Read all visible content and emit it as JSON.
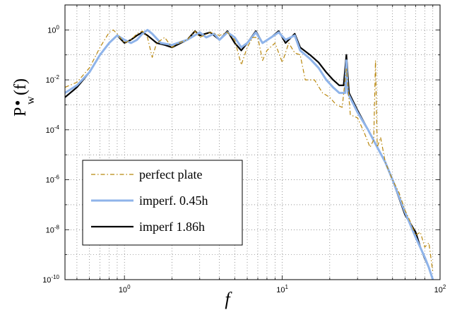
{
  "chart_data": {
    "type": "line",
    "title": "",
    "xlabel": "f",
    "ylabel": "P",
    "ylabel_sub": "w",
    "ylabel_suffix": "(f)",
    "xscale": "log",
    "yscale": "log",
    "xlim": [
      0.42,
      100
    ],
    "ylim": [
      1e-10,
      10
    ],
    "grid": true,
    "legend_position": "bottom-left",
    "x_ticks": [
      {
        "value": 1,
        "base": "10",
        "exp": "0"
      },
      {
        "value": 10,
        "base": "10",
        "exp": "1"
      },
      {
        "value": 100,
        "base": "10",
        "exp": "2"
      }
    ],
    "y_ticks": [
      {
        "value": 1e-10,
        "base": "10",
        "exp": "-10"
      },
      {
        "value": 1e-08,
        "base": "10",
        "exp": "-8"
      },
      {
        "value": 1e-06,
        "base": "10",
        "exp": "-6"
      },
      {
        "value": 0.0001,
        "base": "10",
        "exp": "-4"
      },
      {
        "value": 0.01,
        "base": "10",
        "exp": "-2"
      },
      {
        "value": 1,
        "base": "10",
        "exp": "0"
      }
    ],
    "series": [
      {
        "name": "perfect plate",
        "color": "#b8860b",
        "style": "dashdot",
        "width": 1.2,
        "points": [
          [
            0.42,
            0.005
          ],
          [
            0.5,
            0.008
          ],
          [
            0.6,
            0.03
          ],
          [
            0.7,
            0.2
          ],
          [
            0.8,
            0.8
          ],
          [
            0.85,
            1.0
          ],
          [
            0.9,
            0.7
          ],
          [
            1.0,
            0.3
          ],
          [
            1.1,
            0.4
          ],
          [
            1.2,
            0.7
          ],
          [
            1.3,
            0.9
          ],
          [
            1.4,
            0.5
          ],
          [
            1.5,
            0.08
          ],
          [
            1.6,
            0.3
          ],
          [
            1.8,
            0.5
          ],
          [
            2.0,
            0.2
          ],
          [
            2.2,
            0.3
          ],
          [
            2.5,
            0.4
          ],
          [
            2.8,
            0.9
          ],
          [
            3.0,
            0.5
          ],
          [
            3.5,
            0.8
          ],
          [
            4.0,
            0.6
          ],
          [
            4.5,
            0.8
          ],
          [
            5.0,
            0.4
          ],
          [
            5.5,
            0.04
          ],
          [
            6.0,
            0.2
          ],
          [
            6.5,
            0.5
          ],
          [
            7.0,
            0.5
          ],
          [
            7.5,
            0.06
          ],
          [
            8.0,
            0.15
          ],
          [
            9.0,
            0.3
          ],
          [
            10.0,
            0.05
          ],
          [
            11.0,
            0.3
          ],
          [
            12.0,
            0.12
          ],
          [
            13.0,
            0.1
          ],
          [
            14.0,
            0.01
          ],
          [
            16.0,
            0.01
          ],
          [
            18.0,
            0.003
          ],
          [
            20.0,
            0.002
          ],
          [
            22.0,
            0.001
          ],
          [
            24.0,
            0.0008
          ],
          [
            25.5,
            0.03
          ],
          [
            27.0,
            0.0004
          ],
          [
            30.0,
            0.0003
          ],
          [
            33.0,
            8e-05
          ],
          [
            36.0,
            2e-05
          ],
          [
            38.0,
            4e-05
          ],
          [
            39.0,
            0.06
          ],
          [
            40.0,
            2e-05
          ],
          [
            42.0,
            5e-05
          ],
          [
            45.0,
            5e-06
          ],
          [
            50.0,
            1e-06
          ],
          [
            55.0,
            3e-07
          ],
          [
            60.0,
            6e-08
          ],
          [
            65.0,
            2e-08
          ],
          [
            70.0,
            6e-09
          ],
          [
            75.0,
            8e-09
          ],
          [
            80.0,
            2e-09
          ],
          [
            85.0,
            3e-09
          ],
          [
            90.0,
            2e-10
          ]
        ]
      },
      {
        "name": "imperf. 0.45h",
        "color": "#8fb4ea",
        "style": "solid",
        "width": 3,
        "points": [
          [
            0.42,
            0.003
          ],
          [
            0.5,
            0.006
          ],
          [
            0.6,
            0.02
          ],
          [
            0.7,
            0.1
          ],
          [
            0.8,
            0.3
          ],
          [
            0.9,
            0.6
          ],
          [
            1.0,
            0.4
          ],
          [
            1.1,
            0.3
          ],
          [
            1.2,
            0.4
          ],
          [
            1.3,
            0.7
          ],
          [
            1.4,
            1.0
          ],
          [
            1.5,
            0.7
          ],
          [
            1.7,
            0.3
          ],
          [
            2.0,
            0.25
          ],
          [
            2.5,
            0.4
          ],
          [
            3.0,
            0.8
          ],
          [
            3.3,
            0.5
          ],
          [
            3.7,
            0.7
          ],
          [
            4.0,
            0.4
          ],
          [
            4.5,
            0.8
          ],
          [
            5.0,
            0.5
          ],
          [
            5.5,
            0.2
          ],
          [
            6.0,
            0.3
          ],
          [
            6.8,
            0.8
          ],
          [
            7.5,
            0.3
          ],
          [
            8.5,
            0.5
          ],
          [
            9.5,
            0.8
          ],
          [
            10.5,
            0.4
          ],
          [
            12.0,
            0.6
          ],
          [
            13.0,
            0.15
          ],
          [
            15.0,
            0.07
          ],
          [
            17.0,
            0.03
          ],
          [
            19.0,
            0.01
          ],
          [
            21.0,
            0.005
          ],
          [
            23.0,
            0.003
          ],
          [
            25.0,
            0.003
          ],
          [
            25.5,
            0.06
          ],
          [
            26.0,
            0.003
          ],
          [
            30.0,
            0.0005
          ],
          [
            35.0,
            0.0001
          ],
          [
            40.0,
            2e-05
          ],
          [
            45.0,
            5e-06
          ],
          [
            50.0,
            1e-06
          ],
          [
            60.0,
            5e-08
          ],
          [
            70.0,
            5e-09
          ],
          [
            80.0,
            8e-10
          ],
          [
            85.0,
            3e-10
          ],
          [
            90.0,
            1e-10
          ]
        ]
      },
      {
        "name": "imperf 1.86h",
        "color": "#000000",
        "style": "solid",
        "width": 2.2,
        "points": [
          [
            0.42,
            0.002
          ],
          [
            0.5,
            0.005
          ],
          [
            0.6,
            0.02
          ],
          [
            0.7,
            0.1
          ],
          [
            0.8,
            0.3
          ],
          [
            0.9,
            0.6
          ],
          [
            1.0,
            0.3
          ],
          [
            1.1,
            0.4
          ],
          [
            1.2,
            0.6
          ],
          [
            1.3,
            0.8
          ],
          [
            1.4,
            0.6
          ],
          [
            1.6,
            0.3
          ],
          [
            1.8,
            0.25
          ],
          [
            2.0,
            0.2
          ],
          [
            2.5,
            0.4
          ],
          [
            2.8,
            0.9
          ],
          [
            3.0,
            0.6
          ],
          [
            3.5,
            0.8
          ],
          [
            4.0,
            0.4
          ],
          [
            4.5,
            0.9
          ],
          [
            5.0,
            0.3
          ],
          [
            5.5,
            0.15
          ],
          [
            6.0,
            0.3
          ],
          [
            6.8,
            0.9
          ],
          [
            7.5,
            0.3
          ],
          [
            8.5,
            0.5
          ],
          [
            9.5,
            0.9
          ],
          [
            10.5,
            0.3
          ],
          [
            12.0,
            0.7
          ],
          [
            13.0,
            0.2
          ],
          [
            15.0,
            0.1
          ],
          [
            17.0,
            0.05
          ],
          [
            19.0,
            0.02
          ],
          [
            21.0,
            0.01
          ],
          [
            23.0,
            0.006
          ],
          [
            24.5,
            0.006
          ],
          [
            25.5,
            0.1
          ],
          [
            26.5,
            0.003
          ],
          [
            30.0,
            0.0006
          ],
          [
            35.0,
            0.0001
          ],
          [
            40.0,
            2e-05
          ],
          [
            45.0,
            5e-06
          ],
          [
            50.0,
            1e-06
          ],
          [
            60.0,
            4e-08
          ],
          [
            70.0,
            8e-09
          ],
          [
            75.0,
            2e-09
          ],
          [
            80.0,
            7e-10
          ],
          [
            85.0,
            3e-10
          ],
          [
            90.0,
            1e-10
          ]
        ]
      }
    ]
  }
}
